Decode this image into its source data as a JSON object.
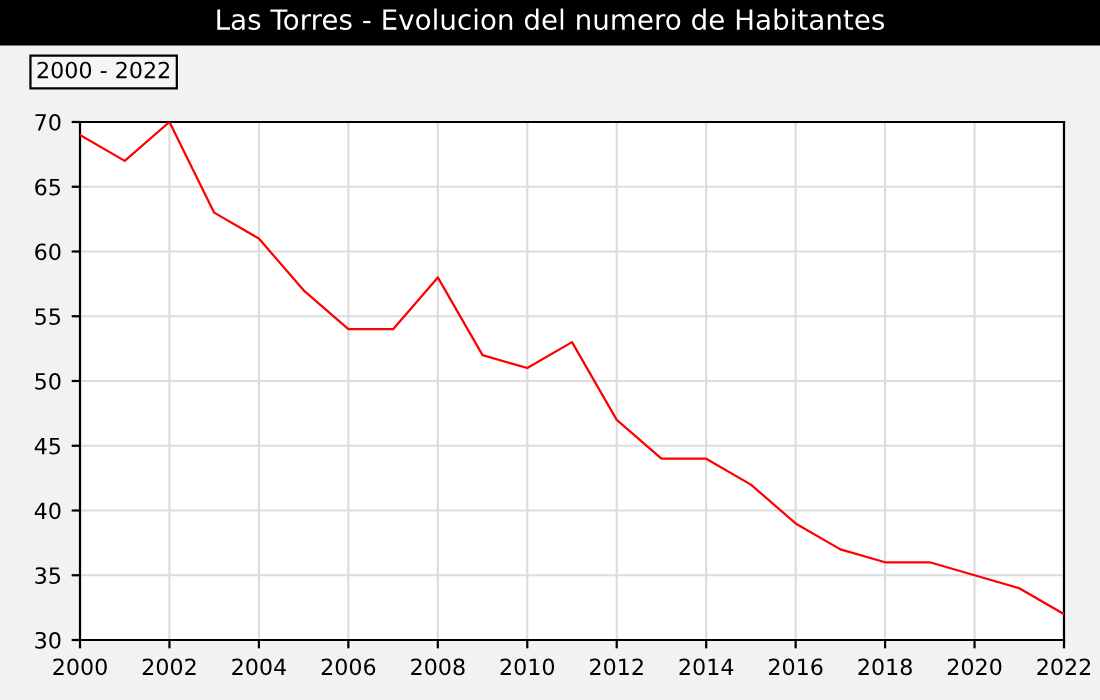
{
  "chart_data": {
    "type": "line",
    "title": "Las Torres - Evolucion del numero de Habitantes",
    "annotations": [
      "2000 - 2022"
    ],
    "x": [
      2000,
      2001,
      2002,
      2003,
      2004,
      2005,
      2006,
      2007,
      2008,
      2009,
      2010,
      2011,
      2012,
      2013,
      2014,
      2015,
      2016,
      2017,
      2018,
      2019,
      2020,
      2021,
      2022
    ],
    "series": [
      {
        "color": "#ff0000",
        "values": [
          69,
          67,
          70,
          63,
          61,
          57,
          54,
          54,
          58,
          52,
          51,
          53,
          47,
          44,
          44,
          42,
          39,
          37,
          36,
          36,
          35,
          34,
          32
        ]
      }
    ],
    "xlim": [
      2000,
      2022
    ],
    "xticks": [
      2000,
      2002,
      2004,
      2006,
      2008,
      2010,
      2012,
      2014,
      2016,
      2018,
      2020,
      2022
    ],
    "ylim": [
      30,
      70
    ],
    "yticks": [
      30,
      35,
      40,
      45,
      50,
      55,
      60,
      65,
      70
    ],
    "grid": true,
    "marker": "none",
    "line_style": "solid",
    "legend": false
  }
}
